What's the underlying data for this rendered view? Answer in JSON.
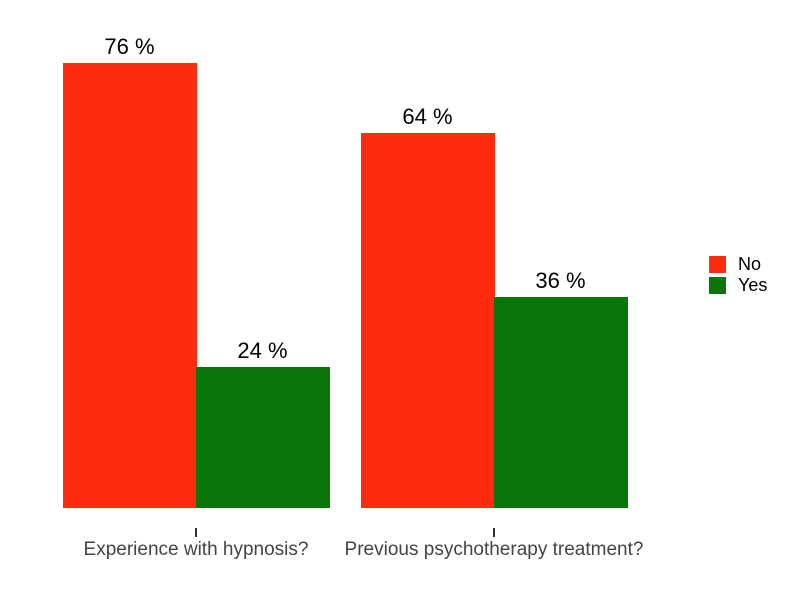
{
  "chart_data": {
    "type": "bar",
    "subtype": "grouped",
    "categories": [
      "Experience with hypnosis?",
      "Previous psychotherapy treatment?"
    ],
    "series": [
      {
        "name": "No",
        "color": "#fe2b0e",
        "values": [
          76,
          64
        ]
      },
      {
        "name": "Yes",
        "color": "#0a760a",
        "values": [
          24,
          36
        ]
      }
    ],
    "value_labels": [
      [
        "76 %",
        "64 %"
      ],
      [
        "24 %",
        "36 %"
      ]
    ],
    "value_label_format": "{v} %",
    "title": "",
    "xlabel": "",
    "ylabel": "",
    "ylim": [
      0,
      80
    ],
    "grid": false,
    "y_axis_visible": false,
    "legend_position": "right"
  },
  "legend": {
    "items": [
      {
        "label": "No",
        "color": "#fe2b0e"
      },
      {
        "label": "Yes",
        "color": "#0a760a"
      }
    ]
  },
  "colors": {
    "background": "#ffffff",
    "value_text": "#000000",
    "axis_text": "#444444",
    "tick": "#333333"
  }
}
